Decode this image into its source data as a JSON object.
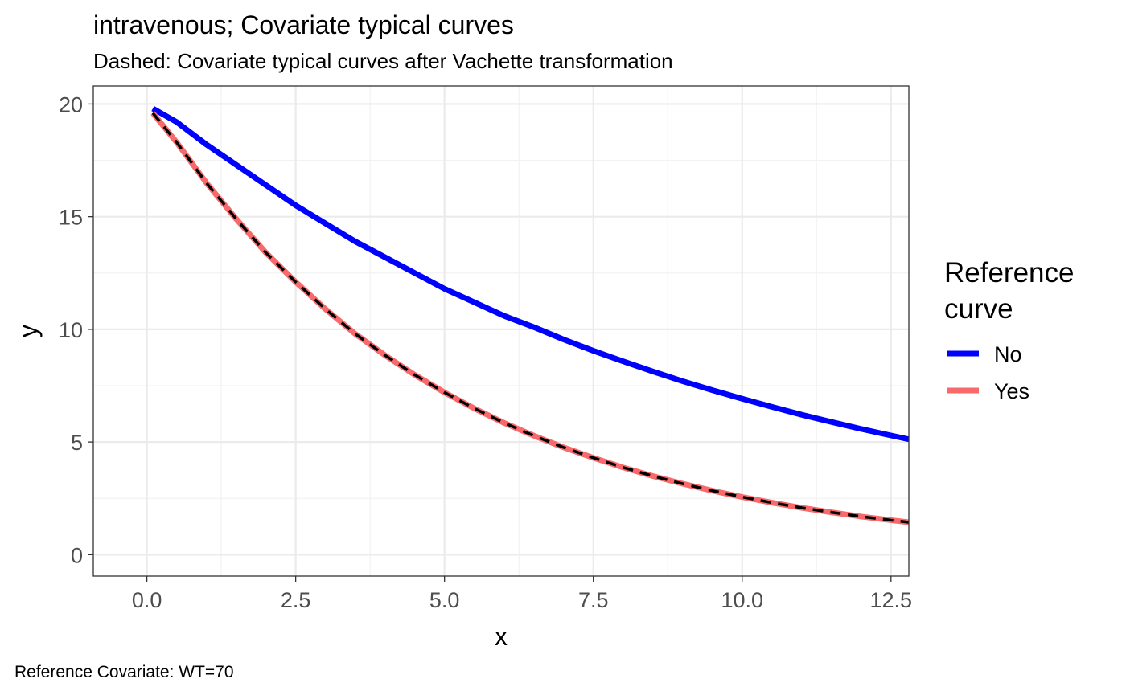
{
  "chart_data": {
    "type": "line",
    "title": "intravenous; Covariate typical curves",
    "subtitle": "Dashed: Covariate typical curves after Vachette transformation",
    "caption": "Reference Covariate: WT=70",
    "xlabel": "x",
    "ylabel": "y",
    "xlim": [
      -0.9,
      12.8
    ],
    "ylim": [
      -0.95,
      20.8
    ],
    "x_ticks": [
      "0.0",
      "2.5",
      "5.0",
      "7.5",
      "10.0",
      "12.5"
    ],
    "x_tick_values": [
      0,
      2.5,
      5,
      7.5,
      10,
      12.5
    ],
    "y_ticks": [
      "0",
      "5",
      "10",
      "15",
      "20"
    ],
    "y_tick_values": [
      0,
      5,
      10,
      15,
      20
    ],
    "grid": true,
    "legend": {
      "title_lines": [
        "Reference",
        "curve"
      ],
      "position": "right",
      "items": [
        {
          "label": "No",
          "color": "#0000ff"
        },
        {
          "label": "Yes",
          "color": "#f8696b"
        }
      ]
    },
    "x": [
      0.1,
      0.5,
      1.0,
      1.5,
      2.0,
      2.5,
      3.0,
      3.5,
      4.0,
      4.5,
      5.0,
      5.5,
      6.0,
      6.5,
      7.0,
      7.5,
      8.0,
      8.5,
      9.0,
      9.5,
      10.0,
      10.5,
      11.0,
      11.5,
      12.0,
      12.5,
      12.8
    ],
    "series": [
      {
        "name": "No",
        "color": "#0000ff",
        "dash": "solid",
        "values": [
          19.8,
          19.2,
          18.2,
          17.3,
          16.4,
          15.5,
          14.7,
          13.9,
          13.2,
          12.5,
          11.8,
          11.2,
          10.6,
          10.1,
          9.55,
          9.05,
          8.58,
          8.13,
          7.7,
          7.3,
          6.92,
          6.56,
          6.21,
          5.89,
          5.58,
          5.29,
          5.12
        ]
      },
      {
        "name": "Yes",
        "color": "#f8696b",
        "dash": "solid",
        "values": [
          19.6,
          18.3,
          16.5,
          14.9,
          13.4,
          12.1,
          10.9,
          9.8,
          8.85,
          7.98,
          7.2,
          6.49,
          5.85,
          5.28,
          4.76,
          4.3,
          3.87,
          3.49,
          3.15,
          2.84,
          2.56,
          2.31,
          2.08,
          1.88,
          1.69,
          1.53,
          1.44
        ]
      },
      {
        "color": "#000000",
        "dash": "dashed",
        "values": [
          19.6,
          18.3,
          16.5,
          14.9,
          13.4,
          12.1,
          10.9,
          9.8,
          8.85,
          7.98,
          7.2,
          6.49,
          5.85,
          5.28,
          4.76,
          4.3,
          3.87,
          3.49,
          3.15,
          2.84,
          2.56,
          2.31,
          2.08,
          1.88,
          1.69,
          1.53,
          1.44
        ]
      }
    ]
  }
}
